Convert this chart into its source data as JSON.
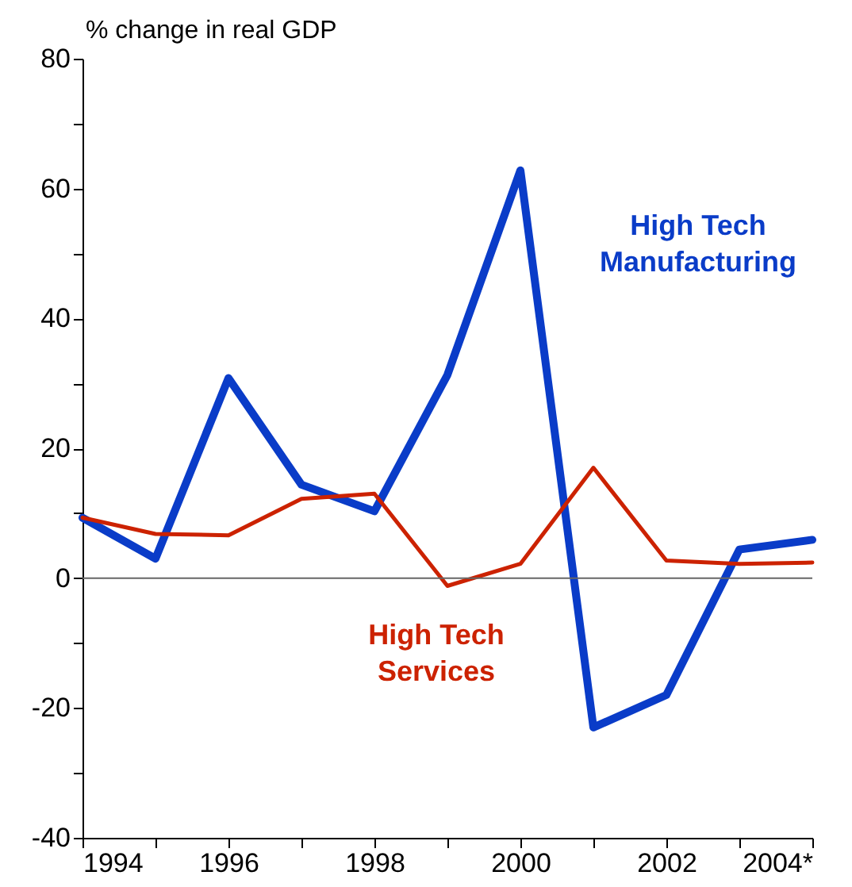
{
  "chart_data": {
    "type": "line",
    "ylabel": "% change in real GDP",
    "x": [
      1994,
      1995,
      1996,
      1997,
      1998,
      1999,
      2000,
      2001,
      2002,
      2003,
      2004
    ],
    "xlim": [
      1994,
      2004
    ],
    "xticks": [
      1994,
      {
        "value": 1995,
        "label": null
      },
      1996,
      {
        "value": 1997,
        "label": null
      },
      1998,
      {
        "value": 1999,
        "label": null
      },
      2000,
      {
        "value": 2001,
        "label": null
      },
      2002,
      {
        "value": 2003,
        "label": null
      },
      {
        "value": 2004,
        "label": "2004*"
      }
    ],
    "ylim": [
      -40,
      80
    ],
    "yticks": [
      -40,
      {
        "value": -30,
        "label": null
      },
      -20,
      {
        "value": -10,
        "label": null
      },
      0,
      {
        "value": 10,
        "label": null
      },
      20,
      {
        "value": 30,
        "label": null
      },
      40,
      {
        "value": 50,
        "label": null
      },
      60,
      {
        "value": 70,
        "label": null
      },
      80
    ],
    "series": [
      {
        "name": "High Tech Manufacturing",
        "color": "#0a3cc8",
        "values": [
          9.3,
          3,
          30.8,
          14.4,
          10.3,
          31.3,
          62.8,
          -23,
          -18,
          4.4,
          5.9
        ]
      },
      {
        "name": "High Tech Services",
        "color": "#cc2200",
        "values": [
          9.3,
          6.8,
          6.6,
          12.2,
          13,
          -1.2,
          2.2,
          17,
          2.7,
          2.2,
          2.4
        ]
      }
    ],
    "ref_lines": [
      {
        "axis": "y",
        "value": 0,
        "color": "#666666"
      }
    ],
    "grid": false,
    "marker": "none",
    "line_style": "solid"
  }
}
